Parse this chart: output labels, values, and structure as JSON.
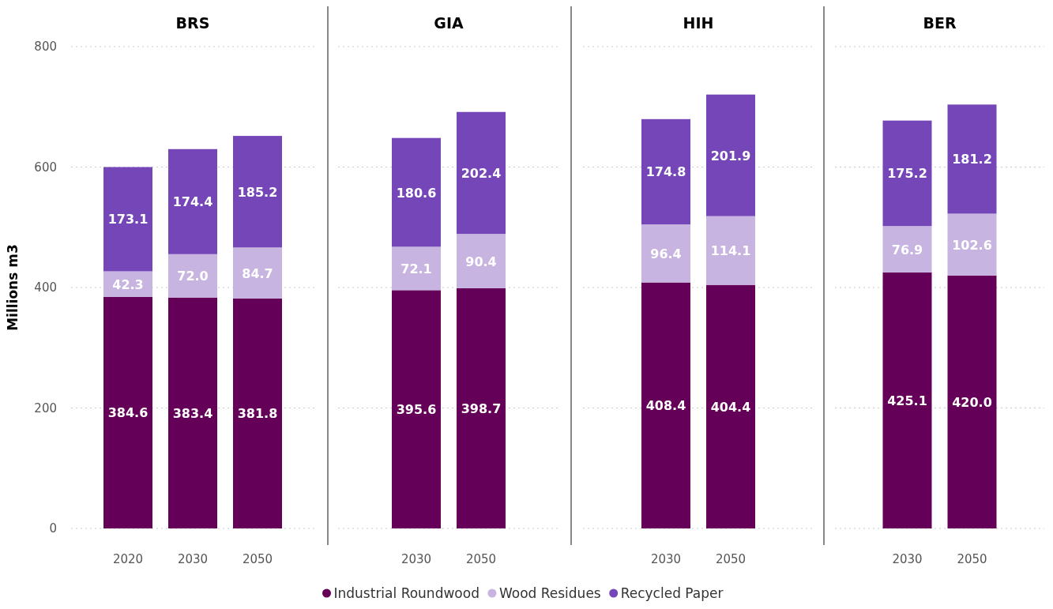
{
  "chart_data": [
    {
      "type": "bar",
      "title": "BRS",
      "ylabel": "Millions m3",
      "categories": [
        "2020",
        "2030",
        "2050"
      ],
      "stacked": true,
      "grid": "y",
      "legend": "bottom",
      "ylim": [
        0,
        800
      ],
      "yticks": [
        0,
        200,
        400,
        600,
        800
      ],
      "series": [
        {
          "name": "Industrial Roundwood",
          "color": "#650058",
          "values": [
            384.6,
            383.4,
            381.8
          ],
          "value_labels": [
            "384.6",
            "383.4",
            "381.8"
          ]
        },
        {
          "name": "Wood Residues",
          "color": "#c8b4e0",
          "values": [
            42.3,
            72.0,
            84.7
          ],
          "value_labels": [
            "42.3",
            "72.0",
            "84.7"
          ]
        },
        {
          "name": "Recycled Paper",
          "color": "#7446b8",
          "values": [
            173.1,
            174.4,
            185.2
          ],
          "value_labels": [
            "173.1",
            "174.4",
            "185.2"
          ]
        }
      ]
    },
    {
      "type": "bar",
      "title": "GIA",
      "categories": [
        "2030",
        "2050"
      ],
      "stacked": true,
      "grid": "y",
      "tick_labels": "x",
      "ylim": [
        0,
        800
      ],
      "yticks": [
        0,
        200,
        400,
        600,
        800
      ],
      "series": [
        {
          "color": "#650058",
          "values": [
            395.6,
            398.7
          ],
          "value_labels": [
            "395.6",
            "398.7"
          ]
        },
        {
          "color": "#c8b4e0",
          "values": [
            72.1,
            90.4
          ],
          "value_labels": [
            "72.1",
            "90.4"
          ]
        },
        {
          "color": "#7446b8",
          "values": [
            180.6,
            202.4
          ],
          "value_labels": [
            "180.6",
            "202.4"
          ]
        }
      ]
    },
    {
      "type": "bar",
      "title": "HIH",
      "categories": [
        "2030",
        "2050"
      ],
      "stacked": true,
      "grid": "y",
      "tick_labels": "x",
      "ylim": [
        0,
        800
      ],
      "yticks": [
        0,
        200,
        400,
        600,
        800
      ],
      "series": [
        {
          "color": "#650058",
          "values": [
            408.4,
            404.4
          ],
          "value_labels": [
            "408.4",
            "404.4"
          ]
        },
        {
          "color": "#c8b4e0",
          "values": [
            96.4,
            114.1
          ],
          "value_labels": [
            "96.4",
            "114.1"
          ]
        },
        {
          "color": "#7446b8",
          "values": [
            174.8,
            201.9
          ],
          "value_labels": [
            "174.8",
            "201.9"
          ]
        }
      ]
    },
    {
      "type": "bar",
      "title": "BER",
      "categories": [
        "2030",
        "2050"
      ],
      "stacked": true,
      "grid": "y",
      "tick_labels": "x",
      "ylim": [
        0,
        800
      ],
      "yticks": [
        0,
        200,
        400,
        600,
        800
      ],
      "series": [
        {
          "color": "#650058",
          "values": [
            425.1,
            420.0
          ],
          "value_labels": [
            "425.1",
            "420.0"
          ]
        },
        {
          "color": "#c8b4e0",
          "values": [
            76.9,
            102.6
          ],
          "value_labels": [
            "76.9",
            "102.6"
          ]
        },
        {
          "color": "#7446b8",
          "values": [
            175.2,
            181.2
          ],
          "value_labels": [
            "175.2",
            "181.2"
          ]
        }
      ]
    }
  ]
}
